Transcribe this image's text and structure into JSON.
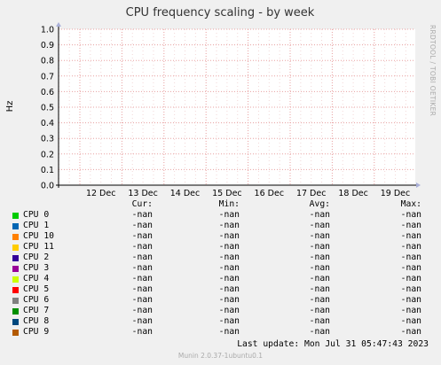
{
  "chart_data": {
    "type": "line",
    "title": "CPU frequency scaling - by week",
    "ylabel": "Hz",
    "ylim": [
      0,
      1.0
    ],
    "yticks": [
      "0.0",
      "0.1",
      "0.2",
      "0.3",
      "0.4",
      "0.5",
      "0.6",
      "0.7",
      "0.8",
      "0.9",
      "1.0"
    ],
    "xticks": [
      "12 Dec",
      "13 Dec",
      "14 Dec",
      "15 Dec",
      "16 Dec",
      "17 Dec",
      "18 Dec",
      "19 Dec"
    ],
    "grid": true,
    "series": [
      {
        "name": "CPU 0",
        "color": "#00cc00",
        "values": []
      },
      {
        "name": "CPU 1",
        "color": "#0066b3",
        "values": []
      },
      {
        "name": "CPU 10",
        "color": "#ff8000",
        "values": []
      },
      {
        "name": "CPU 11",
        "color": "#ffcc00",
        "values": []
      },
      {
        "name": "CPU 2",
        "color": "#330099",
        "values": []
      },
      {
        "name": "CPU 3",
        "color": "#990099",
        "values": []
      },
      {
        "name": "CPU 4",
        "color": "#ccff00",
        "values": []
      },
      {
        "name": "CPU 5",
        "color": "#ff0000",
        "values": []
      },
      {
        "name": "CPU 6",
        "color": "#808080",
        "values": []
      },
      {
        "name": "CPU 7",
        "color": "#008f00",
        "values": []
      },
      {
        "name": "CPU 8",
        "color": "#00487d",
        "values": []
      },
      {
        "name": "CPU 9",
        "color": "#b35a00",
        "values": []
      }
    ]
  },
  "side_label": "RRDTOOL / TOBI OETIKER",
  "legend": {
    "headers": {
      "cur": "Cur:",
      "min": "Min:",
      "avg": "Avg:",
      "max": "Max:"
    },
    "rows": [
      {
        "cur": "-nan",
        "min": "-nan",
        "avg": "-nan",
        "max": "-nan"
      },
      {
        "cur": "-nan",
        "min": "-nan",
        "avg": "-nan",
        "max": "-nan"
      },
      {
        "cur": "-nan",
        "min": "-nan",
        "avg": "-nan",
        "max": "-nan"
      },
      {
        "cur": "-nan",
        "min": "-nan",
        "avg": "-nan",
        "max": "-nan"
      },
      {
        "cur": "-nan",
        "min": "-nan",
        "avg": "-nan",
        "max": "-nan"
      },
      {
        "cur": "-nan",
        "min": "-nan",
        "avg": "-nan",
        "max": "-nan"
      },
      {
        "cur": "-nan",
        "min": "-nan",
        "avg": "-nan",
        "max": "-nan"
      },
      {
        "cur": "-nan",
        "min": "-nan",
        "avg": "-nan",
        "max": "-nan"
      },
      {
        "cur": "-nan",
        "min": "-nan",
        "avg": "-nan",
        "max": "-nan"
      },
      {
        "cur": "-nan",
        "min": "-nan",
        "avg": "-nan",
        "max": "-nan"
      },
      {
        "cur": "-nan",
        "min": "-nan",
        "avg": "-nan",
        "max": "-nan"
      },
      {
        "cur": "-nan",
        "min": "-nan",
        "avg": "-nan",
        "max": "-nan"
      }
    ]
  },
  "last_update": "Last update: Mon Jul 31 05:47:43 2023",
  "footer": "Munin 2.0.37-1ubuntu0.1"
}
